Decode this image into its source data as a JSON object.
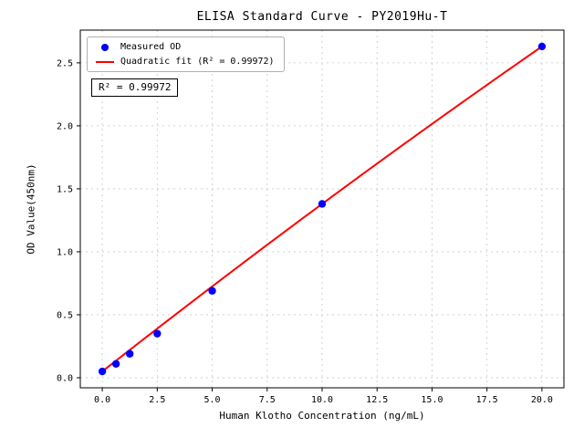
{
  "chart_data": {
    "type": "scatter",
    "title": "ELISA Standard Curve - PY2019Hu-T",
    "xlabel": "Human Klotho Concentration (ng/mL)",
    "ylabel": "OD Value(450nm)",
    "xlim": [
      -1,
      21
    ],
    "ylim": [
      -0.08,
      2.76
    ],
    "xticks": [
      "0.0",
      "2.5",
      "5.0",
      "7.5",
      "10.0",
      "12.5",
      "15.0",
      "17.5",
      "20.0"
    ],
    "yticks": [
      "0.0",
      "0.5",
      "1.0",
      "1.5",
      "2.0",
      "2.5"
    ],
    "grid": true,
    "legend_position": "upper-left",
    "series": [
      {
        "name": "Measured OD",
        "type": "scatter",
        "color": "#0000ff",
        "x": [
          0,
          0.625,
          1.25,
          2.5,
          5,
          10,
          20
        ],
        "y": [
          0.05,
          0.11,
          0.19,
          0.35,
          0.69,
          1.38,
          2.63
        ]
      },
      {
        "name": "Quadratic fit (R² = 0.99972)",
        "type": "line",
        "color": "#ff0000",
        "x_range": [
          0,
          20
        ],
        "fit_coefficients": {
          "intercept": 0.05,
          "linear": 0.137,
          "quadratic": -0.0004
        }
      }
    ],
    "annotation": "R² = 0.99972",
    "r_squared": 0.99972
  }
}
